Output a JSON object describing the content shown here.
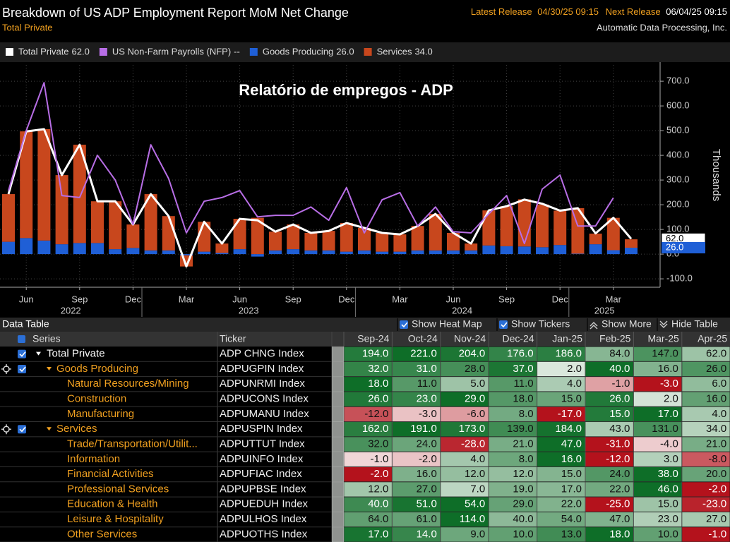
{
  "header": {
    "title": "Breakdown of US ADP Employment Report MoM Net Change",
    "subtitle": "Total Private",
    "latest_release_label": "Latest Release",
    "latest_release": "04/30/25 09:15",
    "next_release_label": "Next Release",
    "next_release": "06/04/25 09:15",
    "source": "Automatic Data Processing, Inc."
  },
  "chart_data": {
    "type": "bar",
    "annotation": "Relatório de empregos - ADP",
    "y_label": "Thousands",
    "x": [
      "2022-05",
      "2022-06",
      "2022-07",
      "2022-08",
      "2022-09",
      "2022-10",
      "2022-11",
      "2022-12",
      "2023-01",
      "2023-02",
      "2023-03",
      "2023-04",
      "2023-05",
      "2023-06",
      "2023-07",
      "2023-08",
      "2023-09",
      "2023-10",
      "2023-11",
      "2023-12",
      "2024-01",
      "2024-02",
      "2024-03",
      "2024-04",
      "2024-05",
      "2024-06",
      "2024-07",
      "2024-08",
      "2024-09",
      "2024-10",
      "2024-11",
      "2024-12",
      "2025-01",
      "2025-02",
      "2025-03",
      "2025-04"
    ],
    "xticks": [
      {
        "value": "2022-06",
        "label": "Jun"
      },
      {
        "value": "2022-09",
        "label": "Sep"
      },
      {
        "value": "2022-12",
        "label": "Dec"
      },
      {
        "value": "2023-03",
        "label": "Mar"
      },
      {
        "value": "2023-06",
        "label": "Jun"
      },
      {
        "value": "2023-09",
        "label": "Sep"
      },
      {
        "value": "2023-12",
        "label": "Dec"
      },
      {
        "value": "2024-03",
        "label": "Mar"
      },
      {
        "value": "2024-06",
        "label": "Jun"
      },
      {
        "value": "2024-09",
        "label": "Sep"
      },
      {
        "value": "2024-12",
        "label": "Dec"
      },
      {
        "value": "2025-03",
        "label": "Mar"
      }
    ],
    "years": [
      2022,
      2023,
      2024,
      2025
    ],
    "ylim": [
      -134,
      766
    ],
    "yticks": [
      {
        "value": -100,
        "label": "-100.0"
      },
      {
        "value": 0,
        "label": "0.0"
      },
      {
        "value": 100,
        "label": "100.0"
      },
      {
        "value": 200,
        "label": "200.0"
      },
      {
        "value": 300,
        "label": "300.0"
      },
      {
        "value": 400,
        "label": "400.0"
      },
      {
        "value": 500,
        "label": "500.0"
      },
      {
        "value": 600,
        "label": "600.0"
      },
      {
        "value": 700,
        "label": "700.0"
      }
    ],
    "grid": true,
    "series": [
      {
        "name": "Total Private",
        "last_label": "62.0",
        "kind": "line",
        "color": "#ffffff",
        "values": [
          243,
          497,
          506,
          320,
          443,
          214,
          214,
          120,
          243,
          154,
          -50,
          131,
          43,
          143,
          137,
          91,
          120,
          86,
          94,
          126,
          106,
          86,
          80,
          114,
          163,
          86,
          43,
          177,
          194,
          221,
          204,
          176,
          186,
          84,
          147,
          62
        ]
      },
      {
        "name": "US Non-Farm Payrolls (NFP)",
        "last_label": "--",
        "kind": "line",
        "color": "#b86ee6",
        "values": [
          257,
          500,
          694,
          237,
          229,
          400,
          300,
          120,
          443,
          306,
          86,
          214,
          229,
          257,
          151,
          157,
          157,
          191,
          137,
          269,
          86,
          220,
          249,
          114,
          191,
          91,
          86,
          163,
          237,
          43,
          263,
          320,
          114,
          114,
          228,
          null
        ]
      },
      {
        "name": "Goods Producing",
        "last_label": "26.0",
        "kind": "bar",
        "color": "#1f5fd6",
        "values": [
          50,
          65,
          55,
          40,
          45,
          45,
          20,
          25,
          15,
          15,
          -5,
          10,
          5,
          20,
          -10,
          15,
          20,
          15,
          15,
          10,
          15,
          10,
          10,
          15,
          15,
          15,
          15,
          35,
          32,
          31,
          28,
          37,
          2,
          40,
          16,
          26
        ]
      },
      {
        "name": "Services",
        "last_label": "34.0",
        "kind": "bar",
        "color": "#c8471d",
        "values": [
          193,
          432,
          451,
          280,
          398,
          169,
          194,
          95,
          228,
          139,
          -45,
          121,
          38,
          123,
          147,
          76,
          100,
          71,
          79,
          116,
          91,
          76,
          70,
          99,
          148,
          71,
          28,
          142,
          162,
          191,
          173,
          139,
          184,
          43,
          131,
          34
        ]
      }
    ]
  },
  "table": {
    "title": "Data Table",
    "buttons": [
      "Show Heat Map",
      "Show Tickers",
      "Show More",
      "Hide Table"
    ],
    "columns": [
      "Series",
      "Ticker",
      "Sep-24",
      "Oct-24",
      "Nov-24",
      "Dec-24",
      "Jan-25",
      "Feb-25",
      "Mar-25",
      "Apr-25"
    ],
    "rows": [
      {
        "series": "Total Private",
        "ticker": "ADP CHNG Index",
        "values": [
          "194.0",
          "221.0",
          "204.0",
          "176.0",
          "186.0",
          "84.0",
          "147.0",
          "62.0"
        ]
      },
      {
        "series": "Goods Producing",
        "ticker": "ADPUGPIN Index",
        "values": [
          "32.0",
          "31.0",
          "28.0",
          "37.0",
          "2.0",
          "40.0",
          "16.0",
          "26.0"
        ]
      },
      {
        "series": "Natural Resources/Mining",
        "ticker": "ADPUNRMI Index",
        "values": [
          "18.0",
          "11.0",
          "5.0",
          "11.0",
          "4.0",
          "-1.0",
          "-3.0",
          "6.0"
        ]
      },
      {
        "series": "Construction",
        "ticker": "ADPUCONS Index",
        "values": [
          "26.0",
          "23.0",
          "29.0",
          "18.0",
          "15.0",
          "26.0",
          "2.0",
          "16.0"
        ]
      },
      {
        "series": "Manufacturing",
        "ticker": "ADPUMANU Index",
        "values": [
          "-12.0",
          "-3.0",
          "-6.0",
          "8.0",
          "-17.0",
          "15.0",
          "17.0",
          "4.0"
        ]
      },
      {
        "series": "Services",
        "ticker": "ADPUSPIN Index",
        "values": [
          "162.0",
          "191.0",
          "173.0",
          "139.0",
          "184.0",
          "43.0",
          "131.0",
          "34.0"
        ]
      },
      {
        "series": "Trade/Transportation/Utilit...",
        "ticker": "ADPUTTUT Index",
        "values": [
          "32.0",
          "24.0",
          "-28.0",
          "21.0",
          "47.0",
          "-31.0",
          "-4.0",
          "21.0"
        ]
      },
      {
        "series": "Information",
        "ticker": "ADPUINFO Index",
        "values": [
          "-1.0",
          "-2.0",
          "4.0",
          "8.0",
          "16.0",
          "-12.0",
          "3.0",
          "-8.0"
        ]
      },
      {
        "series": "Financial Activities",
        "ticker": "ADPUFIAC Index",
        "values": [
          "-2.0",
          "16.0",
          "12.0",
          "12.0",
          "15.0",
          "24.0",
          "38.0",
          "20.0"
        ]
      },
      {
        "series": "Professional Services",
        "ticker": "ADPUPBSE Index",
        "values": [
          "12.0",
          "27.0",
          "7.0",
          "19.0",
          "17.0",
          "22.0",
          "46.0",
          "-2.0"
        ]
      },
      {
        "series": "Education & Health",
        "ticker": "ADPUEDUH Index",
        "values": [
          "40.0",
          "51.0",
          "54.0",
          "29.0",
          "22.0",
          "-25.0",
          "15.0",
          "-23.0"
        ]
      },
      {
        "series": "Leisure & Hospitality",
        "ticker": "ADPULHOS Index",
        "values": [
          "64.0",
          "61.0",
          "114.0",
          "40.0",
          "54.0",
          "47.0",
          "23.0",
          "27.0"
        ]
      },
      {
        "series": "Other Services",
        "ticker": "ADPUOTHS Index",
        "values": [
          "17.0",
          "14.0",
          "9.0",
          "10.0",
          "13.0",
          "18.0",
          "10.0",
          "-1.0"
        ]
      }
    ]
  }
}
